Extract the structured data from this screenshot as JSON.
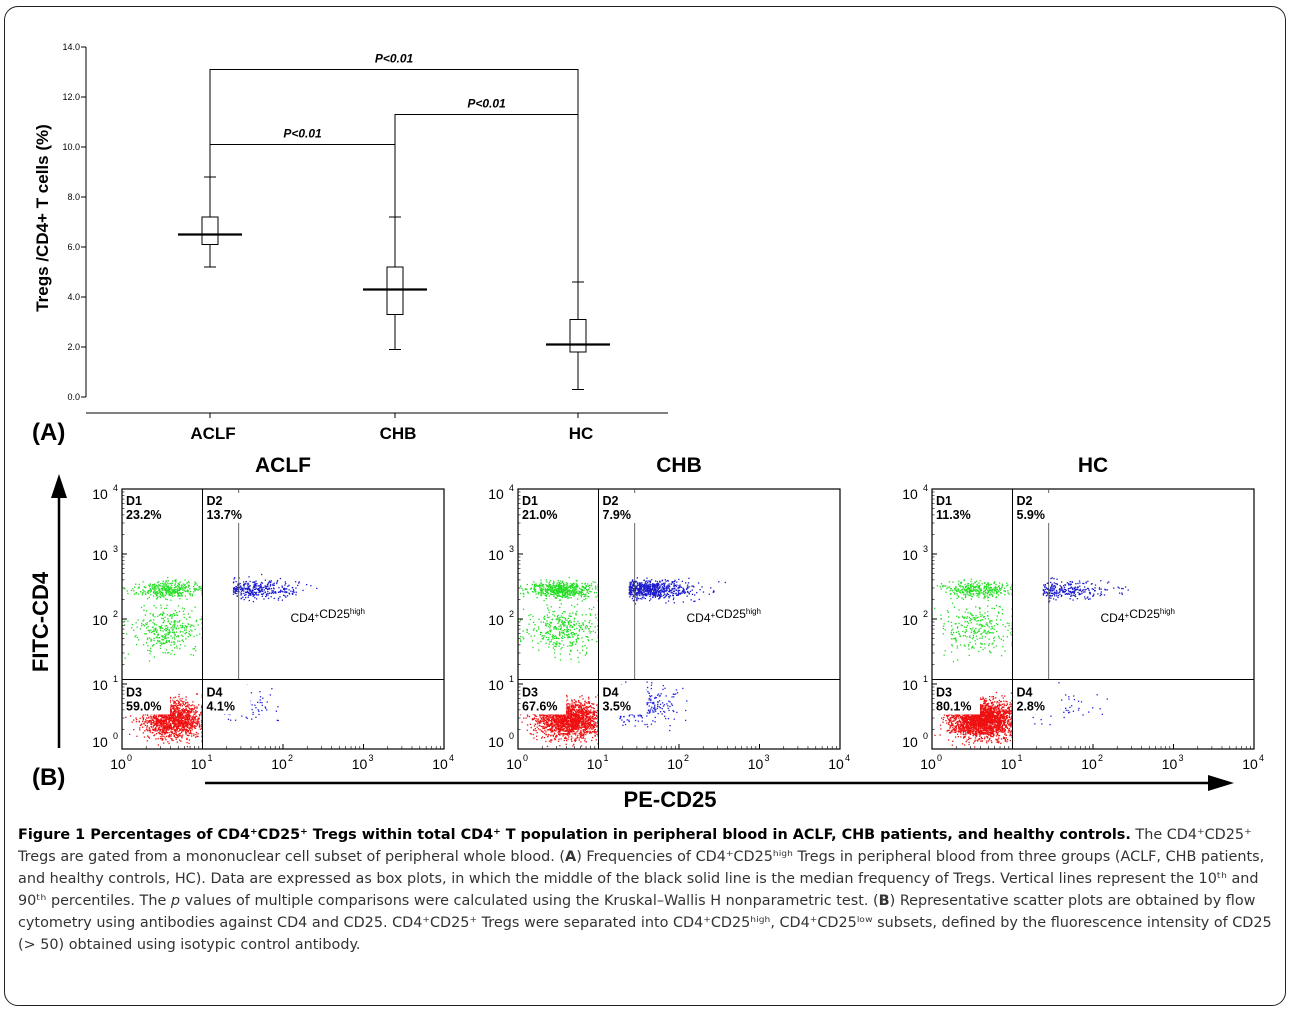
{
  "panel_a": {
    "letter": "(A)",
    "chart_data": {
      "type": "box",
      "ylabel": "Tregs /CD4+ T cells (%)",
      "ylim": [
        0,
        14
      ],
      "yticks": [
        "0.0",
        "2.0",
        "4.0",
        "6.0",
        "8.0",
        "10.0",
        "12.0",
        "14.0"
      ],
      "categories": [
        "ACLF",
        "CHB",
        "HC"
      ],
      "boxes": [
        {
          "category": "ACLF",
          "whisker_low": 5.2,
          "q1": 6.1,
          "median": 6.5,
          "q3": 7.2,
          "whisker_high": 8.8
        },
        {
          "category": "CHB",
          "whisker_low": 1.9,
          "q1": 3.3,
          "median": 4.3,
          "q3": 5.2,
          "whisker_high": 7.2
        },
        {
          "category": "HC",
          "whisker_low": 0.3,
          "q1": 1.8,
          "median": 2.1,
          "q3": 3.1,
          "whisker_high": 4.6
        }
      ],
      "comparisons": [
        {
          "from": "ACLF",
          "to": "HC",
          "y": 13.1,
          "label": "P<0.01"
        },
        {
          "from": "CHB",
          "to": "HC",
          "y": 11.3,
          "label": "P<0.01"
        },
        {
          "from": "ACLF",
          "to": "CHB",
          "y": 10.1,
          "label": "P<0.01"
        }
      ]
    }
  },
  "panel_b": {
    "letter": "(B)",
    "y_axis_title": "FITC-CD4",
    "x_axis_title": "PE-CD25",
    "gate_label": "CD4",
    "gate_sup1": "+",
    "gate_label2": "CD25",
    "gate_sup2": "high",
    "log_ticks": [
      "10",
      "10",
      "10",
      "10",
      "10"
    ],
    "log_exponents": [
      "0",
      "1",
      "2",
      "3",
      "4"
    ],
    "plots": [
      {
        "title": "ACLF",
        "quadrants": [
          {
            "id": "D1",
            "value": "23.2%"
          },
          {
            "id": "D2",
            "value": "13.7%"
          },
          {
            "id": "D3",
            "value": "59.0%"
          },
          {
            "id": "D4",
            "value": "4.1%"
          }
        ]
      },
      {
        "title": "CHB",
        "quadrants": [
          {
            "id": "D1",
            "value": "21.0%"
          },
          {
            "id": "D2",
            "value": "7.9%"
          },
          {
            "id": "D3",
            "value": "67.6%"
          },
          {
            "id": "D4",
            "value": "3.5%"
          }
        ]
      },
      {
        "title": "HC",
        "quadrants": [
          {
            "id": "D1",
            "value": "11.3%"
          },
          {
            "id": "D2",
            "value": "5.9%"
          },
          {
            "id": "D3",
            "value": "80.1%"
          },
          {
            "id": "D4",
            "value": "2.8%"
          }
        ]
      }
    ],
    "colors": {
      "d1": "#22dd22",
      "d2": "#1a1acc",
      "d3": "#ee1111",
      "d4": "#2222dd"
    }
  },
  "caption": {
    "title": "Figure 1 Percentages of CD4⁺CD25⁺ Tregs within total CD4⁺ T population in peripheral blood in ACLF, CHB patients, and healthy controls.",
    "text_1": " The CD4⁺CD25⁺ Tregs are gated from a mononuclear cell subset of peripheral whole blood. (",
    "bold_a": "A",
    "text_2": ") Frequencies of CD4⁺CD25ʰⁱᵍʰ Tregs in peripheral blood from three groups (ACLF, CHB patients, and healthy controls, HC). Data are expressed as box plots, in which the middle of the black solid line is the median frequency of Tregs. Vertical lines represent the 10ᵗʰ and 90ᵗʰ percentiles. The ",
    "italic_p": "p",
    "text_3": " values of multiple comparisons were calculated using the Kruskal–Wallis H nonparametric test. (",
    "bold_b": "B",
    "text_4": ") Representative scatter plots are obtained by flow cytometry using antibodies against CD4 and CD25. CD4⁺CD25⁺ Tregs were separated into CD4⁺CD25ʰⁱᵍʰ, CD4⁺CD25ˡᵒʷ subsets, defined by the fluorescence intensity of CD25 (> 50) obtained using isotypic control antibody."
  }
}
